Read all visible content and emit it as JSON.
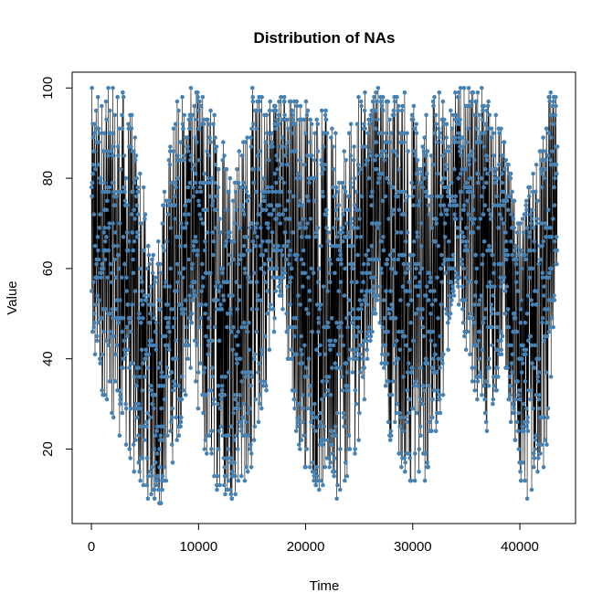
{
  "chart_data": {
    "type": "line",
    "title": "Distribution of NAs",
    "xlabel": "Time",
    "ylabel": "Value",
    "xlim": [
      -1800,
      45200
    ],
    "ylim": [
      3.5,
      103.5
    ],
    "xticks": [
      0,
      10000,
      20000,
      30000,
      40000
    ],
    "yticks": [
      20,
      40,
      60,
      80,
      100
    ],
    "point_color": "#4682b4",
    "line_color": "#000000",
    "n_points": 43800,
    "value_range": [
      6,
      100
    ],
    "envelope": {
      "x": [
        0,
        1500,
        3000,
        4500,
        5500,
        6500,
        8000,
        9500,
        10500,
        12000,
        13500,
        15000,
        16500,
        17500,
        19000,
        20500,
        22000,
        23500,
        25000,
        26500,
        28000,
        29500,
        31000,
        32500,
        34000,
        35500,
        37000,
        38500,
        40000,
        41500,
        42500,
        43500
      ],
      "lower": [
        35,
        30,
        20,
        10,
        8,
        7,
        20,
        40,
        15,
        10,
        8,
        15,
        35,
        55,
        22,
        12,
        8,
        10,
        22,
        50,
        20,
        12,
        10,
        25,
        55,
        35,
        22,
        40,
        8,
        10,
        15,
        60
      ],
      "upper": [
        100,
        100,
        100,
        90,
        60,
        75,
        100,
        100,
        100,
        95,
        85,
        100,
        100,
        100,
        100,
        100,
        95,
        85,
        100,
        100,
        100,
        100,
        95,
        100,
        100,
        100,
        100,
        90,
        70,
        85,
        100,
        100
      ]
    }
  }
}
